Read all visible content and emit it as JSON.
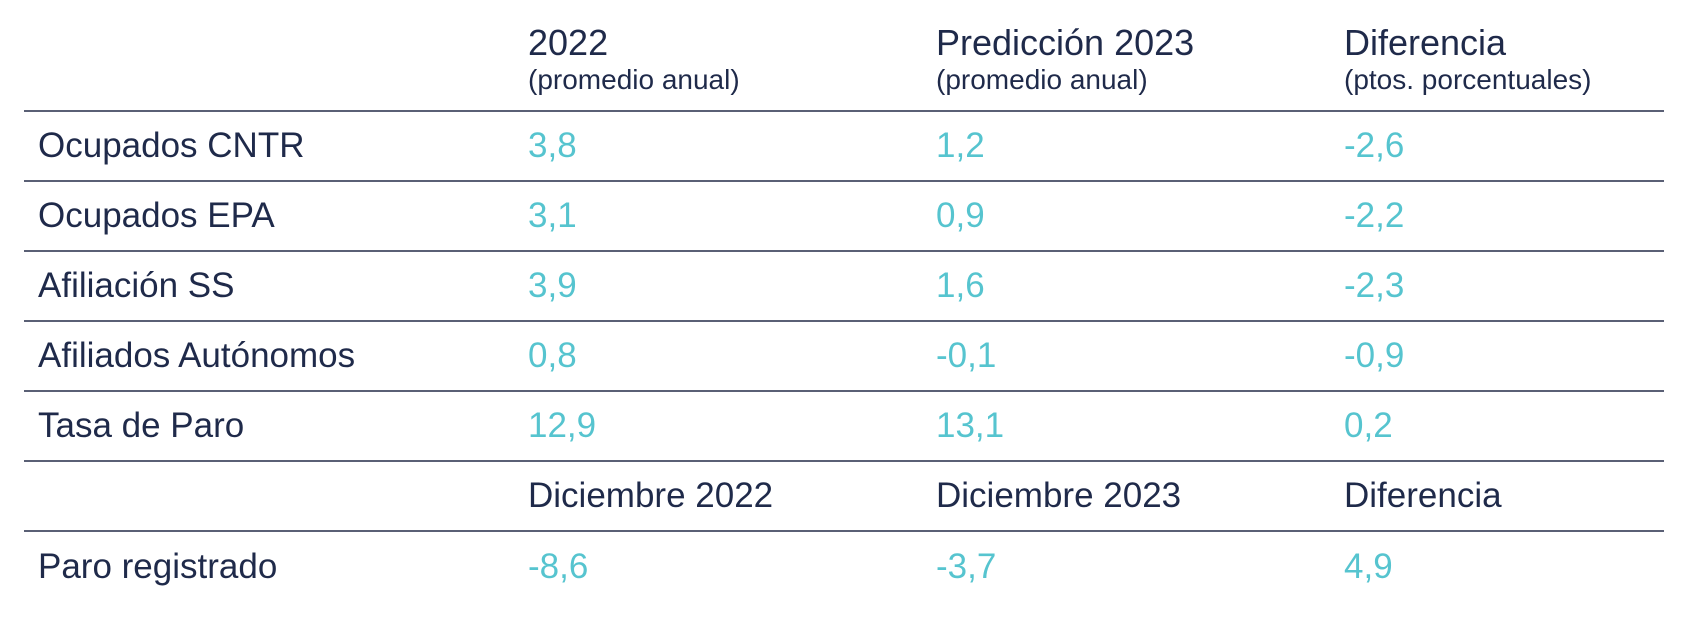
{
  "header": {
    "col1": {
      "title": "2022",
      "subtitle": "(promedio anual)"
    },
    "col2": {
      "title": "Predicción 2023",
      "subtitle": "(promedio anual)"
    },
    "col3": {
      "title": "Diferencia",
      "subtitle": "(ptos. porcentuales)"
    }
  },
  "rows": [
    {
      "label": "Ocupados CNTR",
      "v2022": "3,8",
      "v2023": "1,2",
      "diff": "-2,6"
    },
    {
      "label": "Ocupados EPA",
      "v2022": "3,1",
      "v2023": "0,9",
      "diff": "-2,2"
    },
    {
      "label": "Afiliación SS",
      "v2022": "3,9",
      "v2023": "1,6",
      "diff": "-2,3"
    },
    {
      "label": "Afiliados Autónomos",
      "v2022": "0,8",
      "v2023": "-0,1",
      "diff": "-0,9"
    },
    {
      "label": "Tasa de Paro",
      "v2022": "12,9",
      "v2023": "13,1",
      "diff": "0,2"
    }
  ],
  "subheader": {
    "col1": "Diciembre 2022",
    "col2": "Diciembre 2023",
    "col3": "Diferencia"
  },
  "last_row": {
    "label": "Paro registrado",
    "v2022": "-8,6",
    "v2023": "-3,7",
    "diff": "4,9"
  },
  "colors": {
    "text": "#1f2a4a",
    "value": "#56c4cf",
    "rule": "#5a6075"
  }
}
